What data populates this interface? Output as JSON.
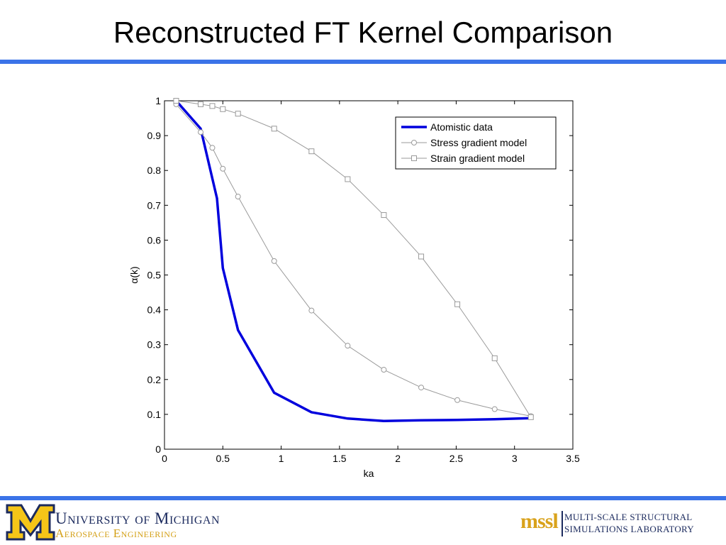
{
  "slide": {
    "title": "Reconstructed FT Kernel Comparison",
    "rule_color": "#3b73e8"
  },
  "chart_data": {
    "type": "line",
    "title": "",
    "xlabel": "ka",
    "ylabel": "α(k)",
    "xlim": [
      0,
      3.5
    ],
    "ylim": [
      0,
      1
    ],
    "xticks": [
      0,
      0.5,
      1,
      1.5,
      2,
      2.5,
      3,
      3.5
    ],
    "xtick_labels": [
      "0",
      "0.5",
      "1",
      "1.5",
      "2",
      "2.5",
      "3",
      "3.5"
    ],
    "yticks": [
      0,
      0.1,
      0.2,
      0.3,
      0.4,
      0.5,
      0.6,
      0.7,
      0.8,
      0.9,
      1
    ],
    "ytick_labels": [
      "0",
      "0.1",
      "0.2",
      "0.3",
      "0.4",
      "0.5",
      "0.6",
      "0.7",
      "0.8",
      "0.9",
      "1"
    ],
    "grid": false,
    "legend_position": "top-right",
    "series": [
      {
        "name": "Atomistic data",
        "style": "thick-line",
        "color": "#0000dd",
        "x": [
          0.1,
          0.31,
          0.45,
          0.5,
          0.63,
          0.94,
          1.26,
          1.57,
          1.88,
          2.2,
          2.51,
          2.83,
          3.14
        ],
        "y": [
          1.0,
          0.92,
          0.72,
          0.52,
          0.342,
          0.162,
          0.106,
          0.088,
          0.081,
          0.083,
          0.084,
          0.086,
          0.089
        ]
      },
      {
        "name": "Stress gradient model",
        "style": "circle-markers",
        "color": "#9a9a9a",
        "x": [
          0.1,
          0.31,
          0.41,
          0.5,
          0.63,
          0.94,
          1.26,
          1.57,
          1.88,
          2.2,
          2.51,
          2.83,
          3.14
        ],
        "y": [
          0.99,
          0.91,
          0.865,
          0.805,
          0.725,
          0.54,
          0.398,
          0.297,
          0.228,
          0.177,
          0.141,
          0.115,
          0.095
        ]
      },
      {
        "name": "Strain gradient model",
        "style": "square-markers",
        "color": "#9a9a9a",
        "x": [
          0.1,
          0.31,
          0.41,
          0.5,
          0.63,
          0.94,
          1.26,
          1.57,
          1.88,
          2.2,
          2.51,
          2.83,
          3.14
        ],
        "y": [
          1.0,
          0.99,
          0.985,
          0.976,
          0.963,
          0.92,
          0.855,
          0.775,
          0.672,
          0.553,
          0.416,
          0.261,
          0.092
        ]
      }
    ]
  },
  "footer": {
    "university_name": "University of Michigan",
    "department": "Aerospace Engineering",
    "lab_mark": "mssl",
    "lab_line1": "MULTI-SCALE STRUCTURAL",
    "lab_line2": "SIMULATIONS LABORATORY",
    "um_blue": "#1b2a5e",
    "um_maize": "#f5c518"
  }
}
